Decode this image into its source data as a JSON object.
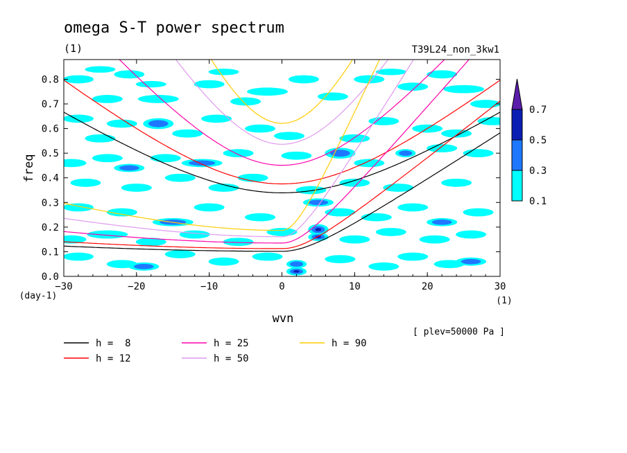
{
  "chart_data": {
    "type": "heatmap",
    "title": "omega S-T power spectrum",
    "left_unit": "(1)",
    "run_name": "T39L24_non_3kw1",
    "xlabel": "wvn",
    "x_unit": "(1)",
    "ylabel": "freq",
    "y_unit": "(day-1)",
    "xlim": [
      -30,
      30
    ],
    "ylim": [
      0,
      0.88
    ],
    "xticks": [
      -30,
      -20,
      -10,
      0,
      10,
      20,
      30
    ],
    "yticks": [
      0.0,
      0.1,
      0.2,
      0.3,
      0.4,
      0.5,
      0.6,
      0.7,
      0.8
    ],
    "plev_label": "[ plev=50000 Pa ]",
    "colorbar": {
      "levels": [
        0.1,
        0.3,
        0.5,
        0.7
      ],
      "colors": [
        "#00ffff",
        "#1e78ff",
        "#0a1eb4",
        "#5a1eaa"
      ]
    },
    "contour_blobs": [
      [
        -28,
        0.8,
        1.5,
        0.015,
        1
      ],
      [
        -25,
        0.84,
        1.5,
        0.012,
        1
      ],
      [
        -21,
        0.82,
        1.5,
        0.015,
        1
      ],
      [
        -18,
        0.78,
        1.5,
        0.012,
        1
      ],
      [
        -24,
        0.72,
        1.5,
        0.015,
        1
      ],
      [
        -17,
        0.72,
        2.0,
        0.015,
        1
      ],
      [
        -10,
        0.78,
        1.5,
        0.015,
        1
      ],
      [
        -8,
        0.83,
        1.5,
        0.012,
        1
      ],
      [
        -5,
        0.71,
        1.5,
        0.015,
        1
      ],
      [
        -2,
        0.75,
        2.0,
        0.015,
        1
      ],
      [
        3,
        0.8,
        1.5,
        0.015,
        1
      ],
      [
        7,
        0.73,
        1.5,
        0.015,
        1
      ],
      [
        12,
        0.8,
        1.5,
        0.015,
        1
      ],
      [
        15,
        0.83,
        1.5,
        0.012,
        1
      ],
      [
        18,
        0.77,
        1.5,
        0.015,
        1
      ],
      [
        22,
        0.82,
        1.5,
        0.015,
        1
      ],
      [
        25,
        0.76,
        2.0,
        0.015,
        1
      ],
      [
        28,
        0.7,
        1.5,
        0.015,
        1
      ],
      [
        -28,
        0.64,
        1.5,
        0.015,
        1
      ],
      [
        -22,
        0.62,
        1.5,
        0.015,
        1
      ],
      [
        -17,
        0.62,
        1.5,
        0.02,
        2
      ],
      [
        -13,
        0.58,
        1.5,
        0.015,
        1
      ],
      [
        -9,
        0.64,
        1.5,
        0.015,
        1
      ],
      [
        -25,
        0.56,
        1.5,
        0.015,
        1
      ],
      [
        -3,
        0.6,
        1.5,
        0.015,
        1
      ],
      [
        1,
        0.57,
        1.5,
        0.015,
        1
      ],
      [
        10,
        0.56,
        1.5,
        0.015,
        1
      ],
      [
        14,
        0.63,
        1.5,
        0.015,
        1
      ],
      [
        20,
        0.6,
        1.5,
        0.015,
        1
      ],
      [
        24,
        0.58,
        1.5,
        0.015,
        1
      ],
      [
        29,
        0.63,
        1.5,
        0.015,
        1
      ],
      [
        -29,
        0.46,
        1.5,
        0.015,
        1
      ],
      [
        -24,
        0.48,
        1.5,
        0.015,
        1
      ],
      [
        -21,
        0.44,
        1.5,
        0.015,
        2
      ],
      [
        -16,
        0.48,
        1.5,
        0.015,
        1
      ],
      [
        -11,
        0.46,
        2.0,
        0.015,
        2
      ],
      [
        -6,
        0.5,
        1.5,
        0.015,
        1
      ],
      [
        2,
        0.49,
        1.5,
        0.015,
        1
      ],
      [
        8,
        0.5,
        1.5,
        0.02,
        2
      ],
      [
        12,
        0.46,
        1.5,
        0.015,
        1
      ],
      [
        17,
        0.5,
        1.0,
        0.015,
        2
      ],
      [
        22,
        0.52,
        1.5,
        0.015,
        1
      ],
      [
        27,
        0.5,
        1.5,
        0.015,
        1
      ],
      [
        -27,
        0.38,
        1.5,
        0.015,
        1
      ],
      [
        -20,
        0.36,
        1.5,
        0.015,
        1
      ],
      [
        -14,
        0.4,
        1.5,
        0.015,
        1
      ],
      [
        -8,
        0.36,
        1.5,
        0.015,
        1
      ],
      [
        -4,
        0.4,
        1.5,
        0.015,
        1
      ],
      [
        4,
        0.35,
        1.5,
        0.015,
        1
      ],
      [
        10,
        0.38,
        1.5,
        0.015,
        1
      ],
      [
        16,
        0.36,
        1.5,
        0.015,
        1
      ],
      [
        24,
        0.38,
        1.5,
        0.015,
        1
      ],
      [
        -28,
        0.28,
        1.5,
        0.015,
        1
      ],
      [
        -22,
        0.26,
        1.5,
        0.015,
        1
      ],
      [
        -15,
        0.22,
        2.0,
        0.015,
        2
      ],
      [
        -10,
        0.28,
        1.5,
        0.015,
        1
      ],
      [
        -3,
        0.24,
        1.5,
        0.015,
        1
      ],
      [
        5,
        0.3,
        1.5,
        0.015,
        2
      ],
      [
        8,
        0.26,
        1.5,
        0.015,
        1
      ],
      [
        13,
        0.24,
        1.5,
        0.015,
        1
      ],
      [
        18,
        0.28,
        1.5,
        0.015,
        1
      ],
      [
        22,
        0.22,
        1.5,
        0.015,
        2
      ],
      [
        27,
        0.26,
        1.5,
        0.015,
        1
      ],
      [
        -29,
        0.15,
        1.5,
        0.015,
        1
      ],
      [
        -24,
        0.17,
        2.0,
        0.015,
        1
      ],
      [
        -18,
        0.14,
        1.5,
        0.015,
        1
      ],
      [
        -12,
        0.17,
        1.5,
        0.015,
        1
      ],
      [
        -6,
        0.14,
        1.5,
        0.015,
        1
      ],
      [
        0,
        0.18,
        1.5,
        0.015,
        1
      ],
      [
        5,
        0.19,
        1.0,
        0.02,
        3
      ],
      [
        5,
        0.16,
        1.0,
        0.015,
        3
      ],
      [
        10,
        0.15,
        1.5,
        0.015,
        1
      ],
      [
        15,
        0.18,
        1.5,
        0.015,
        1
      ],
      [
        21,
        0.15,
        1.5,
        0.015,
        1
      ],
      [
        26,
        0.17,
        1.5,
        0.015,
        1
      ],
      [
        -28,
        0.08,
        1.5,
        0.015,
        1
      ],
      [
        -22,
        0.05,
        1.5,
        0.015,
        1
      ],
      [
        -19,
        0.04,
        1.5,
        0.015,
        2
      ],
      [
        -14,
        0.09,
        1.5,
        0.015,
        1
      ],
      [
        -8,
        0.06,
        1.5,
        0.015,
        1
      ],
      [
        -2,
        0.08,
        1.5,
        0.015,
        1
      ],
      [
        2,
        0.05,
        1.0,
        0.015,
        2
      ],
      [
        2,
        0.02,
        1.0,
        0.015,
        3
      ],
      [
        8,
        0.07,
        1.5,
        0.015,
        1
      ],
      [
        14,
        0.04,
        1.5,
        0.015,
        1
      ],
      [
        18,
        0.08,
        1.5,
        0.015,
        1
      ],
      [
        23,
        0.05,
        1.5,
        0.015,
        1
      ],
      [
        26,
        0.06,
        1.5,
        0.015,
        2
      ]
    ],
    "series": [
      {
        "name": "h =  8",
        "h": 8,
        "color": "#000000"
      },
      {
        "name": "h = 12",
        "h": 12,
        "color": "#ff0000"
      },
      {
        "name": "h = 25",
        "h": 25,
        "color": "#ff00aa"
      },
      {
        "name": "h = 50",
        "h": 50,
        "color": "#dd99ee"
      },
      {
        "name": "h = 90",
        "h": 90,
        "color": "#ffcc00"
      }
    ]
  }
}
